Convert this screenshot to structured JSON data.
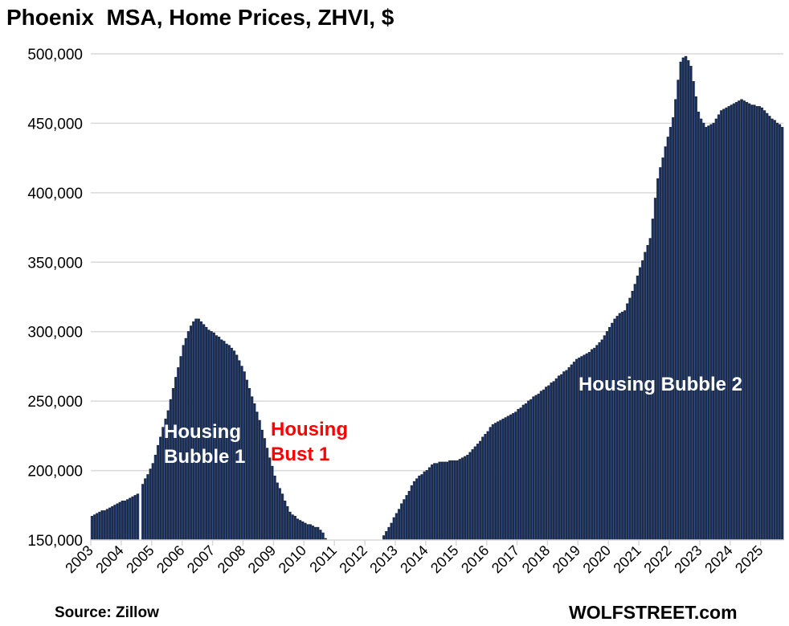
{
  "chart_data": {
    "type": "bar",
    "title": "Phoenix  MSA, Home Prices, ZHVI, $",
    "source": "Source: Zillow",
    "brand": "WOLFSTREET.com",
    "xlabel": "",
    "ylabel": "",
    "ylim": [
      150000,
      500000
    ],
    "yticks": [
      150000,
      200000,
      250000,
      300000,
      350000,
      400000,
      450000,
      500000
    ],
    "ytick_labels": [
      "150,000",
      "200,000",
      "250,000",
      "300,000",
      "350,000",
      "400,000",
      "450,000",
      "500,000"
    ],
    "x_tick_labels": [
      "2003",
      "2004",
      "2005",
      "2006",
      "2007",
      "2008",
      "2009",
      "2010",
      "2011",
      "2012",
      "2013",
      "2014",
      "2015",
      "2016",
      "2017",
      "2018",
      "2019",
      "2020",
      "2021",
      "2022",
      "2023",
      "2024",
      "2025"
    ],
    "frequency": "monthly",
    "start": "2003-01",
    "grid": true,
    "bar_color": "#1f2c47",
    "bar_edge_color": "#3a62b0",
    "annotations": [
      {
        "text": "Housing\nBubble 1",
        "color": "#ffffff"
      },
      {
        "text": "Housing\nBust 1",
        "color": "#ff0000"
      },
      {
        "text": "Housing Bubble 2",
        "color": "#ffffff"
      }
    ],
    "values": [
      167000,
      168000,
      169000,
      170000,
      171000,
      171000,
      172000,
      173000,
      174000,
      175000,
      176000,
      177000,
      178000,
      178000,
      179000,
      180000,
      181000,
      182000,
      183000,
      null,
      190000,
      194000,
      197000,
      201000,
      205000,
      211000,
      218000,
      224000,
      231000,
      237000,
      243000,
      251000,
      259000,
      267000,
      274000,
      282000,
      290000,
      295000,
      300000,
      304000,
      307000,
      309000,
      309000,
      307000,
      305000,
      303000,
      301000,
      300000,
      299000,
      297000,
      296000,
      294000,
      293000,
      291000,
      290000,
      288000,
      286000,
      283000,
      279000,
      275000,
      271000,
      265000,
      259000,
      253000,
      248000,
      242000,
      236000,
      229000,
      223000,
      216000,
      209000,
      203000,
      196000,
      191000,
      187000,
      183000,
      178000,
      174000,
      170000,
      168000,
      167000,
      165000,
      164000,
      163000,
      162000,
      161000,
      161000,
      160000,
      159000,
      159000,
      157000,
      155000,
      151000,
      148000,
      146000,
      144000,
      142000,
      140000,
      139000,
      138000,
      137000,
      136000,
      136000,
      136000,
      137000,
      137000,
      138000,
      139000,
      140000,
      141000,
      142000,
      144000,
      146000,
      148000,
      150000,
      153000,
      156000,
      159000,
      162000,
      166000,
      169000,
      172000,
      176000,
      179000,
      182000,
      185000,
      189000,
      192000,
      194000,
      196000,
      197000,
      199000,
      200000,
      202000,
      204000,
      205000,
      205000,
      206000,
      206000,
      206000,
      206000,
      207000,
      207000,
      207000,
      207000,
      208000,
      209000,
      210000,
      211000,
      213000,
      215000,
      217000,
      219000,
      221000,
      224000,
      226000,
      228000,
      231000,
      233000,
      234000,
      235000,
      236000,
      237000,
      238000,
      239000,
      240000,
      241000,
      242000,
      244000,
      245000,
      247000,
      248000,
      250000,
      251000,
      253000,
      254000,
      255000,
      257000,
      258000,
      260000,
      261000,
      263000,
      264000,
      266000,
      268000,
      269000,
      271000,
      272000,
      274000,
      276000,
      278000,
      280000,
      281000,
      282000,
      283000,
      284000,
      285000,
      287000,
      288000,
      290000,
      292000,
      294000,
      297000,
      300000,
      303000,
      306000,
      309000,
      311000,
      313000,
      314000,
      315000,
      320000,
      324000,
      329000,
      334000,
      340000,
      346000,
      351000,
      357000,
      362000,
      367000,
      381000,
      396000,
      410000,
      418000,
      425000,
      433000,
      440000,
      447000,
      454000,
      467000,
      481000,
      494000,
      497000,
      498000,
      495000,
      491000,
      480000,
      469000,
      458000,
      453000,
      450000,
      447000,
      448000,
      449000,
      450000,
      453000,
      456000,
      459000,
      460000,
      461000,
      462000,
      463000,
      464000,
      465000,
      466000,
      467000,
      466000,
      465000,
      464000,
      463000,
      463000,
      462000,
      462000,
      461000,
      459000,
      457000,
      455000,
      453000,
      452000,
      450000,
      449000,
      447000
    ]
  }
}
